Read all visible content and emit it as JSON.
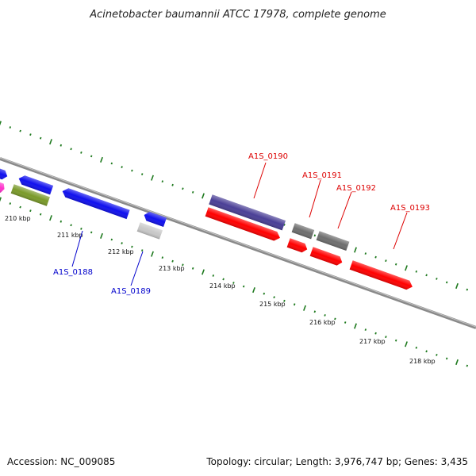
{
  "title": "Acinetobacter baumannii ATCC 17978, complete genome",
  "footer": {
    "accession": "Accession: NC_009085",
    "summary": "Topology: circular; Length: 3,976,747 bp; Genes: 3,435"
  },
  "colors": {
    "background": "#ffffff",
    "backbone": "#8a8a8a",
    "tick": "#1f7a1f",
    "forward_gene": "#4a3f96",
    "reverse_gene": "#ff0000",
    "blue_gene": "#1010ee",
    "olive_gene": "#7a9a2a",
    "magenta_gene": "#ff33cc",
    "gray_gene": "#6e6e6e",
    "light_gray_gene": "#c8c8c8",
    "label_red": "#dd0000",
    "label_blue": "#0000cc"
  },
  "positions_kbp": [
    "210 kbp",
    "211 kbp",
    "212 kbp",
    "213 kbp",
    "214 kbp",
    "215 kbp",
    "216 kbp",
    "217 kbp",
    "218 kbp"
  ],
  "gene_labels": [
    {
      "id": "A1S_0188",
      "color": "label_blue"
    },
    {
      "id": "A1S_0189",
      "color": "label_blue"
    },
    {
      "id": "A1S_0190",
      "color": "label_red"
    },
    {
      "id": "A1S_0191",
      "color": "label_red"
    },
    {
      "id": "A1S_0192",
      "color": "label_red"
    },
    {
      "id": "A1S_0193",
      "color": "label_red"
    }
  ]
}
